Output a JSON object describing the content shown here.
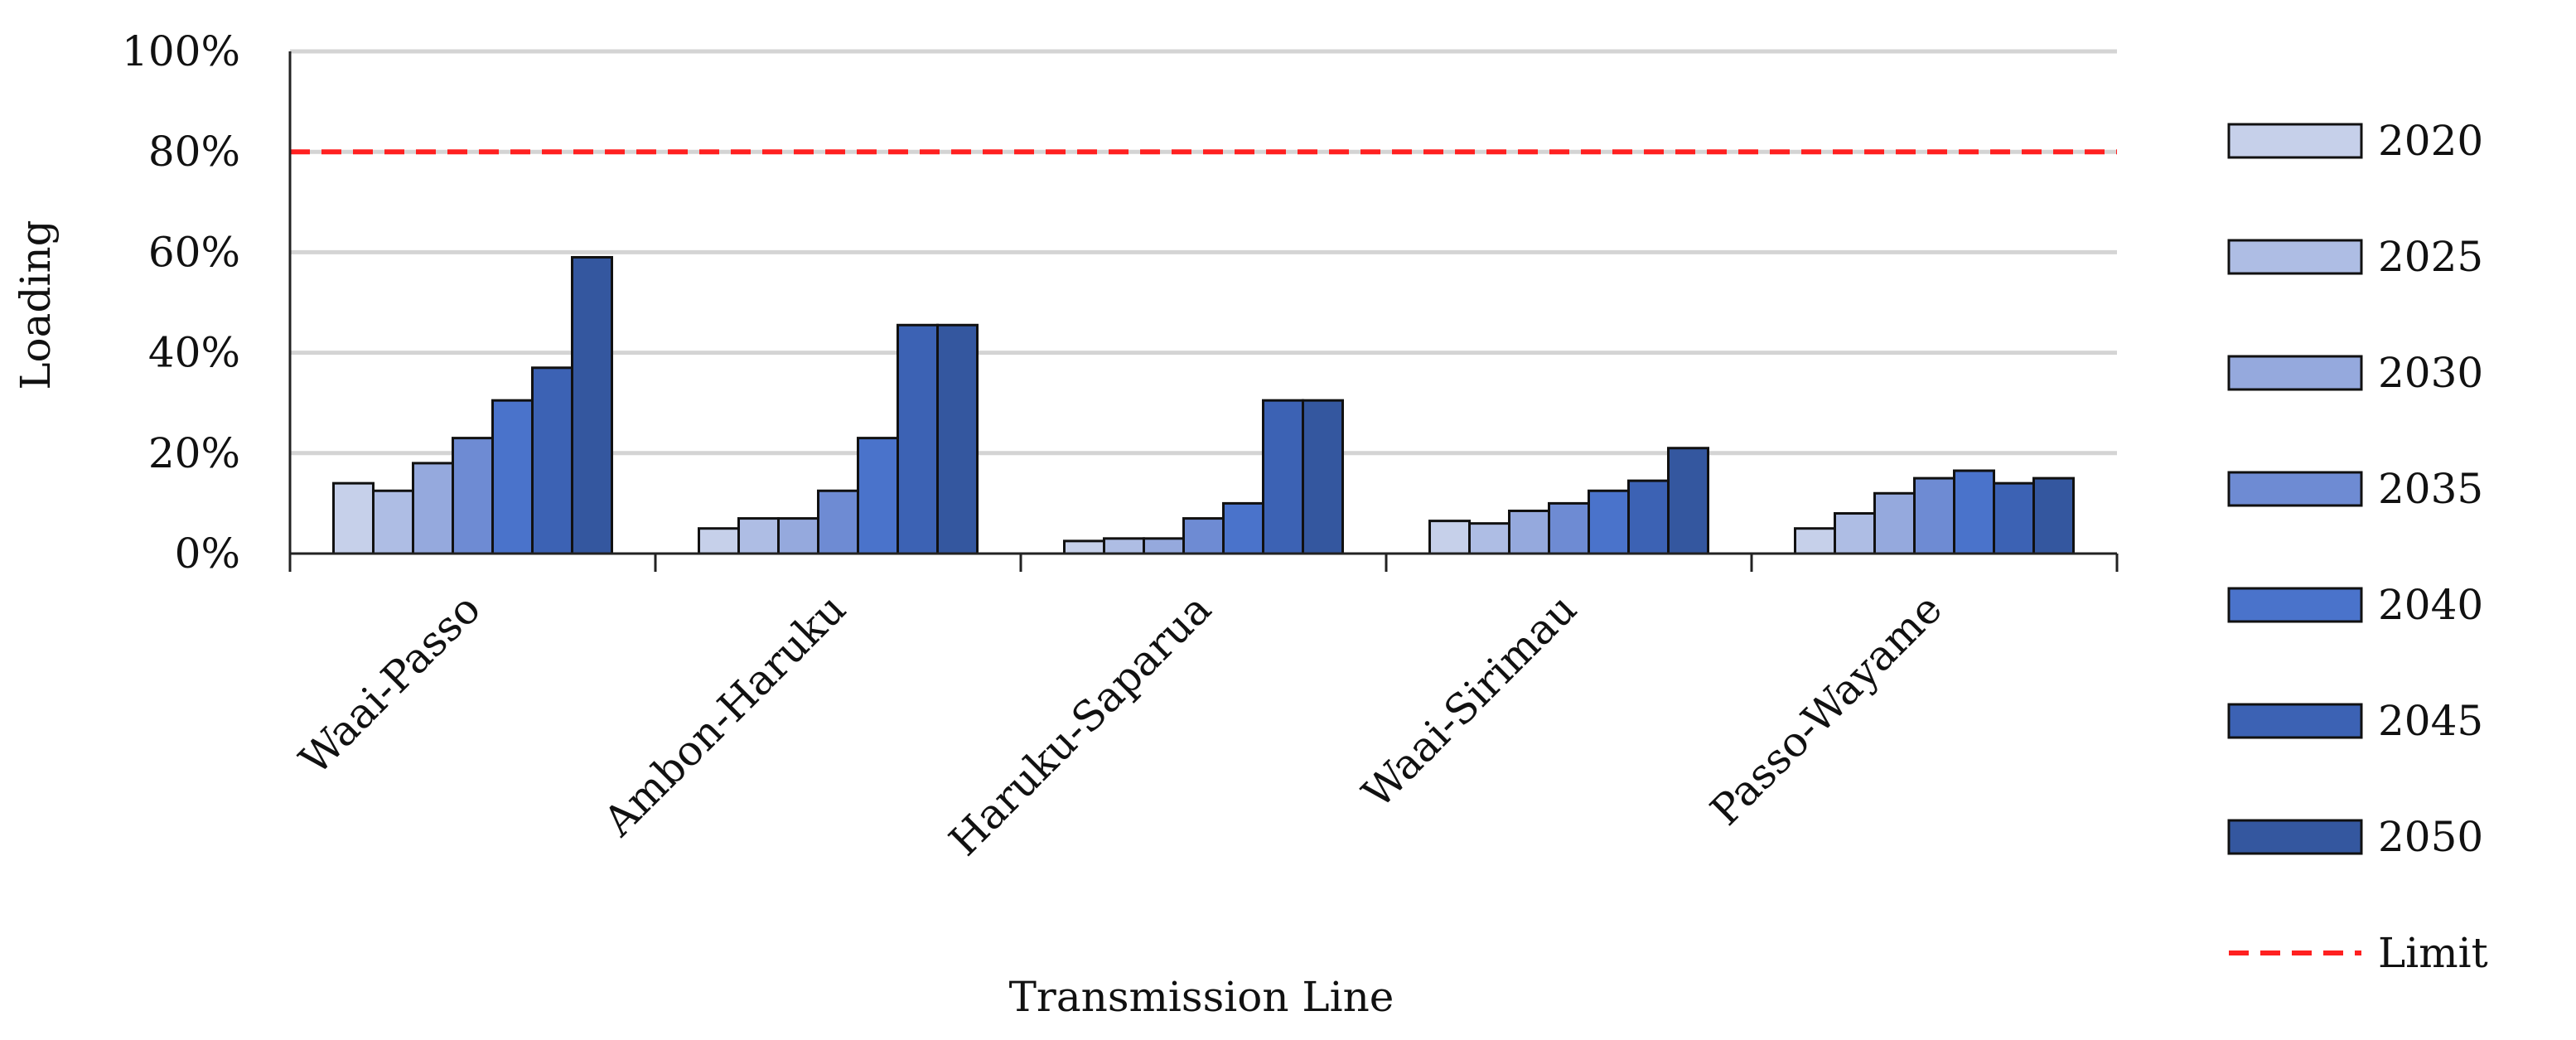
{
  "chart_data": {
    "type": "bar",
    "title": "",
    "xlabel": "Transmission Line",
    "ylabel": "Loading",
    "ylim": [
      0,
      100
    ],
    "yticks": [
      "0%",
      "20%",
      "40%",
      "60%",
      "80%",
      "100%"
    ],
    "grid": true,
    "legend_position": "right",
    "categories": [
      "Waai-Passo",
      "Ambon-Haruku",
      "Haruku-Saparua",
      "Waai-Sirimau",
      "Passo-Wayame"
    ],
    "series": [
      {
        "name": "2020",
        "color": "#c6d0ea",
        "values": [
          14,
          5,
          2.5,
          6.5,
          5
        ]
      },
      {
        "name": "2025",
        "color": "#aebde4",
        "values": [
          12.5,
          7,
          3,
          6,
          8
        ]
      },
      {
        "name": "2030",
        "color": "#95a9dd",
        "values": [
          18,
          7,
          3,
          8.5,
          12
        ]
      },
      {
        "name": "2035",
        "color": "#6e8bd3",
        "values": [
          23,
          12.5,
          7,
          10,
          15
        ]
      },
      {
        "name": "2040",
        "color": "#4a73cb",
        "values": [
          30.5,
          23,
          10,
          12.5,
          16.5
        ]
      },
      {
        "name": "2045",
        "color": "#3c62b4",
        "values": [
          37,
          45.5,
          30.5,
          14.5,
          14
        ]
      },
      {
        "name": "2050",
        "color": "#34579f",
        "values": [
          59,
          45.5,
          30.5,
          21,
          15
        ]
      }
    ],
    "limit": {
      "name": "Limit",
      "value": 80,
      "color": "#ff2020"
    }
  }
}
